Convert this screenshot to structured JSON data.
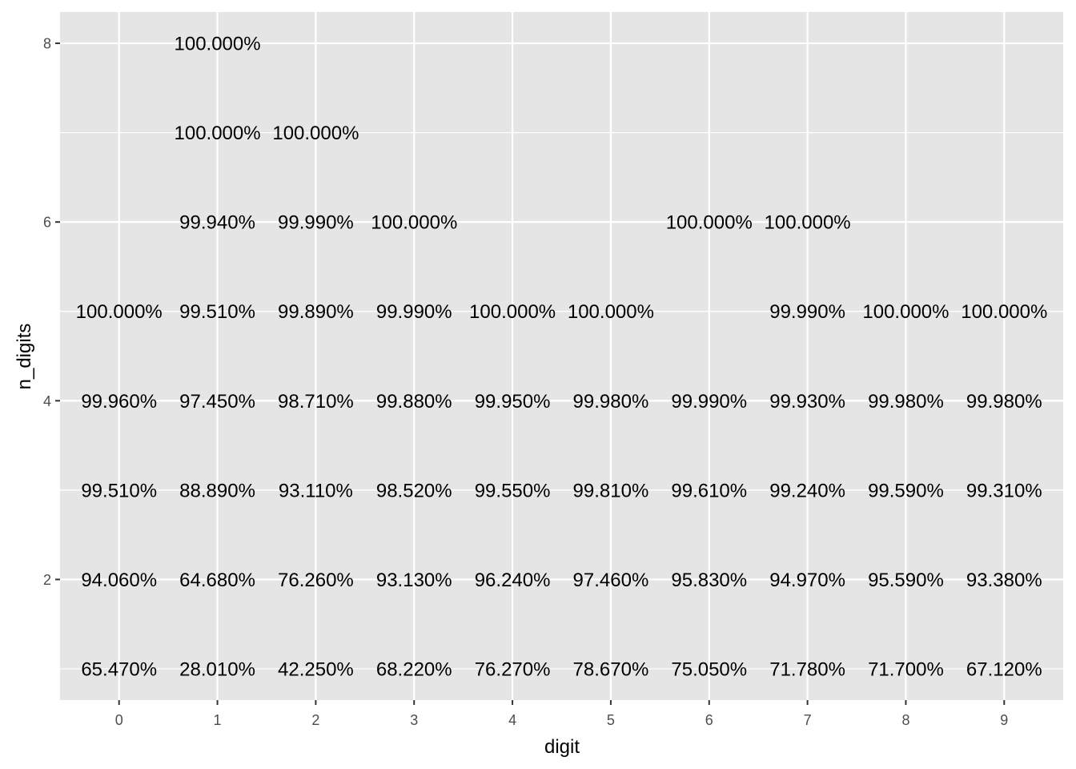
{
  "chart_data": {
    "type": "table",
    "xlabel": "digit",
    "ylabel": "n_digits",
    "x_ticks": [
      0,
      1,
      2,
      3,
      4,
      5,
      6,
      7,
      8,
      9
    ],
    "y_ticks": [
      2,
      4,
      6,
      8
    ],
    "xlim": [
      -0.6,
      9.6
    ],
    "ylim": [
      0.65,
      8.35
    ],
    "grid": true,
    "colors": {
      "panel": "#e5e5e5",
      "grid": "#ffffff",
      "text": "#000000",
      "tick": "#4d4d4d"
    },
    "points": [
      {
        "x": 0,
        "y": 1,
        "label": "65.470%"
      },
      {
        "x": 1,
        "y": 1,
        "label": "28.010%"
      },
      {
        "x": 2,
        "y": 1,
        "label": "42.250%"
      },
      {
        "x": 3,
        "y": 1,
        "label": "68.220%"
      },
      {
        "x": 4,
        "y": 1,
        "label": "76.270%"
      },
      {
        "x": 5,
        "y": 1,
        "label": "78.670%"
      },
      {
        "x": 6,
        "y": 1,
        "label": "75.050%"
      },
      {
        "x": 7,
        "y": 1,
        "label": "71.780%"
      },
      {
        "x": 8,
        "y": 1,
        "label": "71.700%"
      },
      {
        "x": 9,
        "y": 1,
        "label": "67.120%"
      },
      {
        "x": 0,
        "y": 2,
        "label": "94.060%"
      },
      {
        "x": 1,
        "y": 2,
        "label": "64.680%"
      },
      {
        "x": 2,
        "y": 2,
        "label": "76.260%"
      },
      {
        "x": 3,
        "y": 2,
        "label": "93.130%"
      },
      {
        "x": 4,
        "y": 2,
        "label": "96.240%"
      },
      {
        "x": 5,
        "y": 2,
        "label": "97.460%"
      },
      {
        "x": 6,
        "y": 2,
        "label": "95.830%"
      },
      {
        "x": 7,
        "y": 2,
        "label": "94.970%"
      },
      {
        "x": 8,
        "y": 2,
        "label": "95.590%"
      },
      {
        "x": 9,
        "y": 2,
        "label": "93.380%"
      },
      {
        "x": 0,
        "y": 3,
        "label": "99.510%"
      },
      {
        "x": 1,
        "y": 3,
        "label": "88.890%"
      },
      {
        "x": 2,
        "y": 3,
        "label": "93.110%"
      },
      {
        "x": 3,
        "y": 3,
        "label": "98.520%"
      },
      {
        "x": 4,
        "y": 3,
        "label": "99.550%"
      },
      {
        "x": 5,
        "y": 3,
        "label": "99.810%"
      },
      {
        "x": 6,
        "y": 3,
        "label": "99.610%"
      },
      {
        "x": 7,
        "y": 3,
        "label": "99.240%"
      },
      {
        "x": 8,
        "y": 3,
        "label": "99.590%"
      },
      {
        "x": 9,
        "y": 3,
        "label": "99.310%"
      },
      {
        "x": 0,
        "y": 4,
        "label": "99.960%"
      },
      {
        "x": 1,
        "y": 4,
        "label": "97.450%"
      },
      {
        "x": 2,
        "y": 4,
        "label": "98.710%"
      },
      {
        "x": 3,
        "y": 4,
        "label": "99.880%"
      },
      {
        "x": 4,
        "y": 4,
        "label": "99.950%"
      },
      {
        "x": 5,
        "y": 4,
        "label": "99.980%"
      },
      {
        "x": 6,
        "y": 4,
        "label": "99.990%"
      },
      {
        "x": 7,
        "y": 4,
        "label": "99.930%"
      },
      {
        "x": 8,
        "y": 4,
        "label": "99.980%"
      },
      {
        "x": 9,
        "y": 4,
        "label": "99.980%"
      },
      {
        "x": 0,
        "y": 5,
        "label": "100.000%"
      },
      {
        "x": 1,
        "y": 5,
        "label": "99.510%"
      },
      {
        "x": 2,
        "y": 5,
        "label": "99.890%"
      },
      {
        "x": 3,
        "y": 5,
        "label": "99.990%"
      },
      {
        "x": 4,
        "y": 5,
        "label": "100.000%"
      },
      {
        "x": 5,
        "y": 5,
        "label": "100.000%"
      },
      {
        "x": 7,
        "y": 5,
        "label": "99.990%"
      },
      {
        "x": 8,
        "y": 5,
        "label": "100.000%"
      },
      {
        "x": 9,
        "y": 5,
        "label": "100.000%"
      },
      {
        "x": 1,
        "y": 6,
        "label": "99.940%"
      },
      {
        "x": 2,
        "y": 6,
        "label": "99.990%"
      },
      {
        "x": 3,
        "y": 6,
        "label": "100.000%"
      },
      {
        "x": 6,
        "y": 6,
        "label": "100.000%"
      },
      {
        "x": 7,
        "y": 6,
        "label": "100.000%"
      },
      {
        "x": 1,
        "y": 7,
        "label": "100.000%"
      },
      {
        "x": 2,
        "y": 7,
        "label": "100.000%"
      },
      {
        "x": 1,
        "y": 8,
        "label": "100.000%"
      }
    ]
  }
}
